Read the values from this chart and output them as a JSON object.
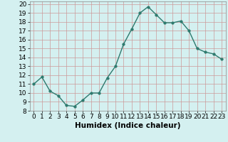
{
  "x": [
    0,
    1,
    2,
    3,
    4,
    5,
    6,
    7,
    8,
    9,
    10,
    11,
    12,
    13,
    14,
    15,
    16,
    17,
    18,
    19,
    20,
    21,
    22,
    23
  ],
  "y": [
    11.0,
    11.8,
    10.2,
    9.7,
    8.6,
    8.5,
    9.2,
    10.0,
    10.0,
    11.7,
    13.0,
    15.5,
    17.2,
    19.0,
    19.7,
    18.8,
    17.9,
    17.9,
    18.1,
    17.0,
    15.0,
    14.6,
    14.4,
    13.8
  ],
  "line_color": "#2d7a6e",
  "marker": "o",
  "markersize": 2.5,
  "linewidth": 1.0,
  "xlabel": "Humidex (Indice chaleur)",
  "ylabel": "",
  "xlim": [
    -0.5,
    23.5
  ],
  "ylim": [
    8,
    20.3
  ],
  "yticks": [
    8,
    9,
    10,
    11,
    12,
    13,
    14,
    15,
    16,
    17,
    18,
    19,
    20
  ],
  "xticks": [
    0,
    1,
    2,
    3,
    4,
    5,
    6,
    7,
    8,
    9,
    10,
    11,
    12,
    13,
    14,
    15,
    16,
    17,
    18,
    19,
    20,
    21,
    22,
    23
  ],
  "bg_color": "#d4f0f0",
  "grid_color_major": "#cc9999",
  "grid_color_minor": "#cc9999",
  "tick_fontsize": 6.5,
  "xlabel_fontsize": 7.5
}
